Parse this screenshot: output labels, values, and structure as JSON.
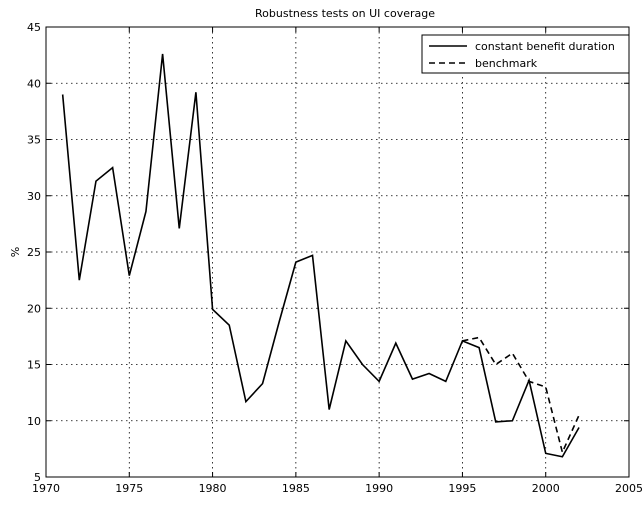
{
  "chart_data": {
    "type": "line",
    "title": "Robustness tests on UI coverage",
    "xlabel": "",
    "ylabel": "%",
    "xlim": [
      1970,
      2005
    ],
    "ylim": [
      5,
      45
    ],
    "xticks": [
      1970,
      1975,
      1980,
      1985,
      1990,
      1995,
      2000,
      2005
    ],
    "yticks": [
      5,
      10,
      15,
      20,
      25,
      30,
      35,
      40,
      45
    ],
    "grid": true,
    "legend_position": "top-right",
    "series": [
      {
        "name": "constant benefit duration",
        "style": "solid",
        "color": "#000000",
        "x": [
          1971,
          1972,
          1973,
          1974,
          1975,
          1976,
          1977,
          1978,
          1979,
          1980,
          1981,
          1982,
          1983,
          1984,
          1985,
          1986,
          1987,
          1988,
          1989,
          1990,
          1991,
          1992,
          1993,
          1994,
          1995,
          1996,
          1997,
          1998,
          1999,
          2000,
          2001,
          2002
        ],
        "y": [
          39.0,
          22.5,
          31.3,
          32.5,
          22.9,
          28.6,
          42.6,
          27.1,
          39.2,
          19.9,
          18.5,
          11.7,
          13.3,
          18.8,
          24.1,
          24.7,
          11.0,
          17.1,
          15.0,
          13.5,
          16.9,
          13.7,
          14.2,
          13.5,
          17.1,
          16.5,
          9.9,
          10.0,
          13.6,
          7.1,
          6.8,
          9.4
        ]
      },
      {
        "name": "benchmark",
        "style": "dashed",
        "color": "#000000",
        "x": [
          1995,
          1996,
          1997,
          1998,
          1999,
          2000,
          2001,
          2002
        ],
        "y": [
          17.1,
          17.4,
          15.0,
          16.0,
          13.5,
          13.0,
          7.2,
          10.5
        ]
      }
    ]
  }
}
